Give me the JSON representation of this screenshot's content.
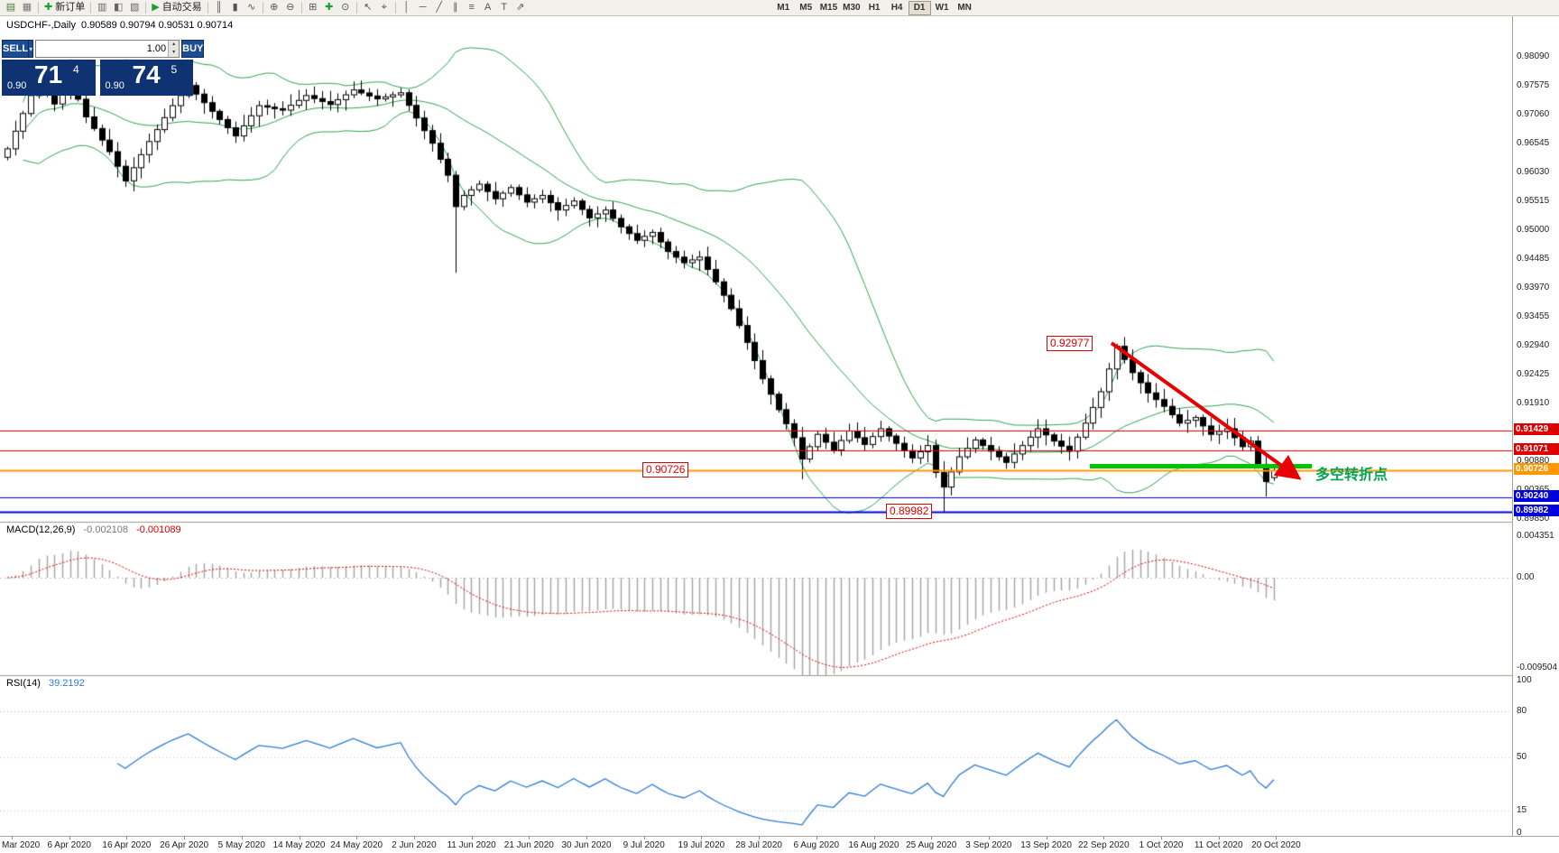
{
  "app": {
    "chart_bg": "#ffffff",
    "accent_navy": "#0e3272",
    "button_blue": "#1d4c96"
  },
  "toolbar": {
    "groups": [
      {
        "items": [
          {
            "name": "new-chart-icon",
            "glyph": "▤",
            "color": "#4a7d3a"
          },
          {
            "name": "chart-profiles-icon",
            "glyph": "▦",
            "color": "#777777"
          }
        ]
      },
      {
        "items": [
          {
            "name": "new-order-button",
            "glyph": "✚",
            "color": "#1a9c2e",
            "label": "新订单"
          }
        ]
      },
      {
        "items": [
          {
            "name": "market-watch-icon",
            "glyph": "▥",
            "color": "#666666"
          },
          {
            "name": "data-window-icon",
            "glyph": "◧",
            "color": "#666666"
          },
          {
            "name": "navigator-icon",
            "glyph": "▧",
            "color": "#666666"
          }
        ]
      },
      {
        "items": [
          {
            "name": "autotrading-button",
            "glyph": "▶",
            "color": "#1a9c2e",
            "label": "自动交易"
          }
        ]
      },
      {
        "items": [
          {
            "name": "bar-chart-type-icon",
            "glyph": "║"
          },
          {
            "name": "candlestick-chart-type-icon",
            "glyph": "▮"
          },
          {
            "name": "line-chart-type-icon",
            "glyph": "∿"
          }
        ]
      },
      {
        "items": [
          {
            "name": "zoom-in-icon",
            "glyph": "⊕"
          },
          {
            "name": "zoom-out-icon",
            "glyph": "⊖"
          }
        ]
      },
      {
        "items": [
          {
            "name": "tile-windows-icon",
            "glyph": "⊞"
          },
          {
            "name": "indicators-icon",
            "glyph": "✚",
            "color": "#1a9c2e"
          },
          {
            "name": "periods-icon",
            "glyph": "⊙"
          }
        ]
      },
      {
        "items": [
          {
            "name": "cursor-icon",
            "glyph": "↖"
          },
          {
            "name": "crosshair-icon",
            "glyph": "⌖"
          }
        ]
      },
      {
        "items": [
          {
            "name": "vertical-line-icon",
            "glyph": "│"
          },
          {
            "name": "horizontal-line-icon",
            "glyph": "─"
          },
          {
            "name": "trendline-icon",
            "glyph": "╱"
          },
          {
            "name": "channel-icon",
            "glyph": "∥"
          },
          {
            "name": "fibonacci-icon",
            "glyph": "≡"
          },
          {
            "name": "text-icon",
            "glyph": "A"
          },
          {
            "name": "label-icon",
            "glyph": "T"
          },
          {
            "name": "arrows-icon",
            "glyph": "⇗"
          }
        ]
      },
      {
        "spacer_before": true,
        "timeframes": true,
        "items": [
          {
            "name": "tf-m1-button",
            "label": "M1"
          },
          {
            "name": "tf-m5-button",
            "label": "M5"
          },
          {
            "name": "tf-m15-button",
            "label": "M15"
          },
          {
            "name": "tf-m30-button",
            "label": "M30"
          },
          {
            "name": "tf-h1-button",
            "label": "H1"
          },
          {
            "name": "tf-h4-button",
            "label": "H4"
          },
          {
            "name": "tf-d1-button",
            "label": "D1",
            "active": true
          },
          {
            "name": "tf-w1-button",
            "label": "W1"
          },
          {
            "name": "tf-mn-button",
            "label": "MN"
          }
        ]
      }
    ]
  },
  "chart": {
    "title": {
      "symbol_period": "USDCHF-,Daily",
      "ohlc": "0.90589 0.90794 0.90531 0.90714"
    },
    "trade_panel": {
      "sell_label": "SELL",
      "buy_label": "BUY",
      "volume": "1.00",
      "sell_quote": {
        "figure": "0.90",
        "pips": "71",
        "pipette": "4"
      },
      "buy_quote": {
        "figure": "0.90",
        "pips": "74",
        "pipette": "5"
      }
    },
    "price_ticks": [
      "0.98090",
      "0.97575",
      "0.97060",
      "0.96545",
      "0.96030",
      "0.95515",
      "0.95000",
      "0.94485",
      "0.93970",
      "0.93455",
      "0.92940",
      "0.92425",
      "0.91910",
      "0.91395",
      "0.90880",
      "0.90365",
      "0.89850"
    ],
    "dates": [
      "Mar 2020",
      "6 Apr 2020",
      "16 Apr 2020",
      "26 Apr 2020",
      "5 May 2020",
      "14 May 2020",
      "24 May 2020",
      "2 Jun 2020",
      "11 Jun 2020",
      "21 Jun 2020",
      "30 Jun 2020",
      "9 Jul 2020",
      "19 Jul 2020",
      "28 Jul 2020",
      "6 Aug 2020",
      "16 Aug 2020",
      "25 Aug 2020",
      "3 Sep 2020",
      "13 Sep 2020",
      "22 Sep 2020",
      "1 Oct 2020",
      "11 Oct 2020",
      "20 Oct 2020"
    ],
    "levels": [
      {
        "price": 0.91429,
        "label": "0.91429",
        "color": "#dd0000",
        "lw": 1
      },
      {
        "price": 0.91071,
        "label": "0.91071",
        "color": "#dd0000",
        "lw": 1
      },
      {
        "price": 0.90726,
        "label": "0.90726",
        "color": "#ff9800",
        "lw": 2
      },
      {
        "price": 0.9024,
        "label": "0.90240",
        "color": "#0000dd",
        "lw": 1
      },
      {
        "price": 0.89982,
        "label": "0.89982",
        "color": "#0000dd",
        "lw": 2
      }
    ],
    "annotations": {
      "peak_flag": "0.92977",
      "support_flag": "0.90726",
      "low_flag": "0.89982",
      "turning_point_text": "多空转折点",
      "arrow_color": "#e80000",
      "highlight_color": "#00c400",
      "note_color": "#00a651"
    },
    "macd": {
      "label": "MACD(12,26,9)",
      "value_main": "-0.002108",
      "value_signal": "-0.001089",
      "scale_top": "0.004351",
      "scale_zero": "0.00",
      "scale_bottom": "-0.009504"
    },
    "rsi": {
      "label": "RSI(14)",
      "value": "39.2192",
      "scale": [
        "100",
        "80",
        "50",
        "15",
        "0"
      ]
    }
  },
  "chart_data": {
    "type": "candlestick",
    "symbol": "USDCHF",
    "period": "Daily",
    "candle_count": 162,
    "price_axis_range": [
      0.8985,
      0.9816
    ],
    "last_candle": {
      "open": 0.90589,
      "high": 0.90794,
      "low": 0.90531,
      "close": 0.90714
    },
    "close_anchors": [
      [
        0,
        0.9645
      ],
      [
        2,
        0.9708
      ],
      [
        4,
        0.9772
      ],
      [
        6,
        0.9725
      ],
      [
        8,
        0.9765
      ],
      [
        10,
        0.9702
      ],
      [
        13,
        0.964
      ],
      [
        15,
        0.9588
      ],
      [
        18,
        0.9658
      ],
      [
        21,
        0.9722
      ],
      [
        23,
        0.9758
      ],
      [
        26,
        0.9712
      ],
      [
        29,
        0.9668
      ],
      [
        32,
        0.9722
      ],
      [
        35,
        0.9714
      ],
      [
        38,
        0.974
      ],
      [
        41,
        0.9724
      ],
      [
        44,
        0.975
      ],
      [
        47,
        0.9734
      ],
      [
        50,
        0.9745
      ],
      [
        52,
        0.97
      ],
      [
        54,
        0.9655
      ],
      [
        56,
        0.9598
      ],
      [
        57,
        0.9542
      ],
      [
        58,
        0.9562
      ],
      [
        60,
        0.9582
      ],
      [
        62,
        0.9556
      ],
      [
        64,
        0.9576
      ],
      [
        66,
        0.955
      ],
      [
        68,
        0.9562
      ],
      [
        70,
        0.9536
      ],
      [
        72,
        0.9552
      ],
      [
        74,
        0.9522
      ],
      [
        76,
        0.9536
      ],
      [
        78,
        0.9506
      ],
      [
        80,
        0.9482
      ],
      [
        82,
        0.9496
      ],
      [
        84,
        0.9462
      ],
      [
        86,
        0.9442
      ],
      [
        88,
        0.9452
      ],
      [
        90,
        0.9408
      ],
      [
        92,
        0.936
      ],
      [
        94,
        0.93
      ],
      [
        96,
        0.9235
      ],
      [
        98,
        0.918
      ],
      [
        100,
        0.913
      ],
      [
        101,
        0.9092
      ],
      [
        103,
        0.9136
      ],
      [
        105,
        0.9108
      ],
      [
        107,
        0.9142
      ],
      [
        109,
        0.9118
      ],
      [
        111,
        0.9146
      ],
      [
        113,
        0.912
      ],
      [
        115,
        0.9094
      ],
      [
        117,
        0.9116
      ],
      [
        118,
        0.9068
      ],
      [
        119,
        0.9042
      ],
      [
        121,
        0.9096
      ],
      [
        123,
        0.9126
      ],
      [
        125,
        0.9106
      ],
      [
        127,
        0.9086
      ],
      [
        129,
        0.9116
      ],
      [
        131,
        0.9146
      ],
      [
        133,
        0.9124
      ],
      [
        135,
        0.9106
      ],
      [
        137,
        0.9156
      ],
      [
        139,
        0.9212
      ],
      [
        141,
        0.9293
      ],
      [
        143,
        0.9246
      ],
      [
        145,
        0.921
      ],
      [
        147,
        0.9186
      ],
      [
        149,
        0.9156
      ],
      [
        151,
        0.9166
      ],
      [
        153,
        0.9136
      ],
      [
        155,
        0.9146
      ],
      [
        157,
        0.9114
      ],
      [
        158,
        0.9124
      ],
      [
        159,
        0.9082
      ],
      [
        160,
        0.9052
      ],
      [
        161,
        0.90714
      ]
    ],
    "low_overrides": {
      "57": 0.9424,
      "101": 0.9056,
      "119": 0.8998,
      "160": 0.9025
    },
    "high_overrides": {
      "141": 0.92977
    },
    "key_points": {
      "september_high": 0.92977,
      "september_low": 0.89982,
      "pivot_level": 0.90726,
      "current_close": 0.90714
    },
    "indicators": {
      "bollinger_bands": {
        "period": 20,
        "deviation": 2,
        "color": "#2fa352"
      },
      "macd": {
        "fast": 12,
        "slow": 26,
        "signal": 9,
        "current_macd": -0.002108,
        "current_signal": -0.001089,
        "scale_max": 0.004351,
        "scale_min": -0.009504
      },
      "rsi": {
        "period": 14,
        "current": 39.2192,
        "scale_max": 100,
        "scale_min": 0,
        "levels": [
          80,
          50,
          15
        ]
      }
    }
  }
}
